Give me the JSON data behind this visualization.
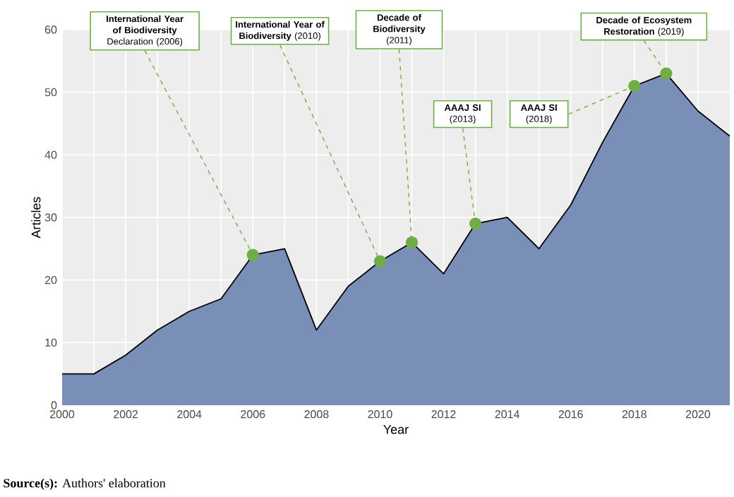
{
  "chart_data": {
    "type": "area",
    "xlabel": "Year",
    "ylabel": "Articles",
    "x": [
      2000,
      2001,
      2002,
      2003,
      2004,
      2005,
      2006,
      2007,
      2008,
      2009,
      2010,
      2011,
      2012,
      2013,
      2014,
      2015,
      2016,
      2017,
      2018,
      2019,
      2020,
      2021
    ],
    "values": [
      5,
      5,
      8,
      12,
      15,
      17,
      24,
      25,
      12,
      19,
      23,
      26,
      21,
      29,
      30,
      25,
      32,
      42,
      51,
      53,
      47,
      43
    ],
    "color": "#7a8fb8",
    "xlim": [
      2000,
      2021
    ],
    "ylim": [
      0,
      60
    ],
    "xticks": [
      2000,
      2002,
      2004,
      2006,
      2008,
      2010,
      2012,
      2014,
      2016,
      2018,
      2020
    ],
    "yticks": [
      0,
      10,
      20,
      30,
      40,
      50,
      60
    ],
    "grid": true,
    "annotations": [
      {
        "text": "**International Year of Biodiversity** Declaration (2006)",
        "x": 2006,
        "y": 24
      },
      {
        "text": "**International Year of Biodiversity** (2010)",
        "x": 2010,
        "y": 23
      },
      {
        "text": "**Decade of Biodiversity** (2011)",
        "x": 2011,
        "y": 26
      },
      {
        "text": "**AAAJ SI** (2013)",
        "x": 2013,
        "y": 29
      },
      {
        "text": "**AAAJ SI** (2018)",
        "x": 2018,
        "y": 51
      },
      {
        "text": "**Decade of Ecosystem Restoration** (2019)",
        "x": 2019,
        "y": 53
      },
      "**Source(s):** Authors' elaboration"
    ]
  }
}
